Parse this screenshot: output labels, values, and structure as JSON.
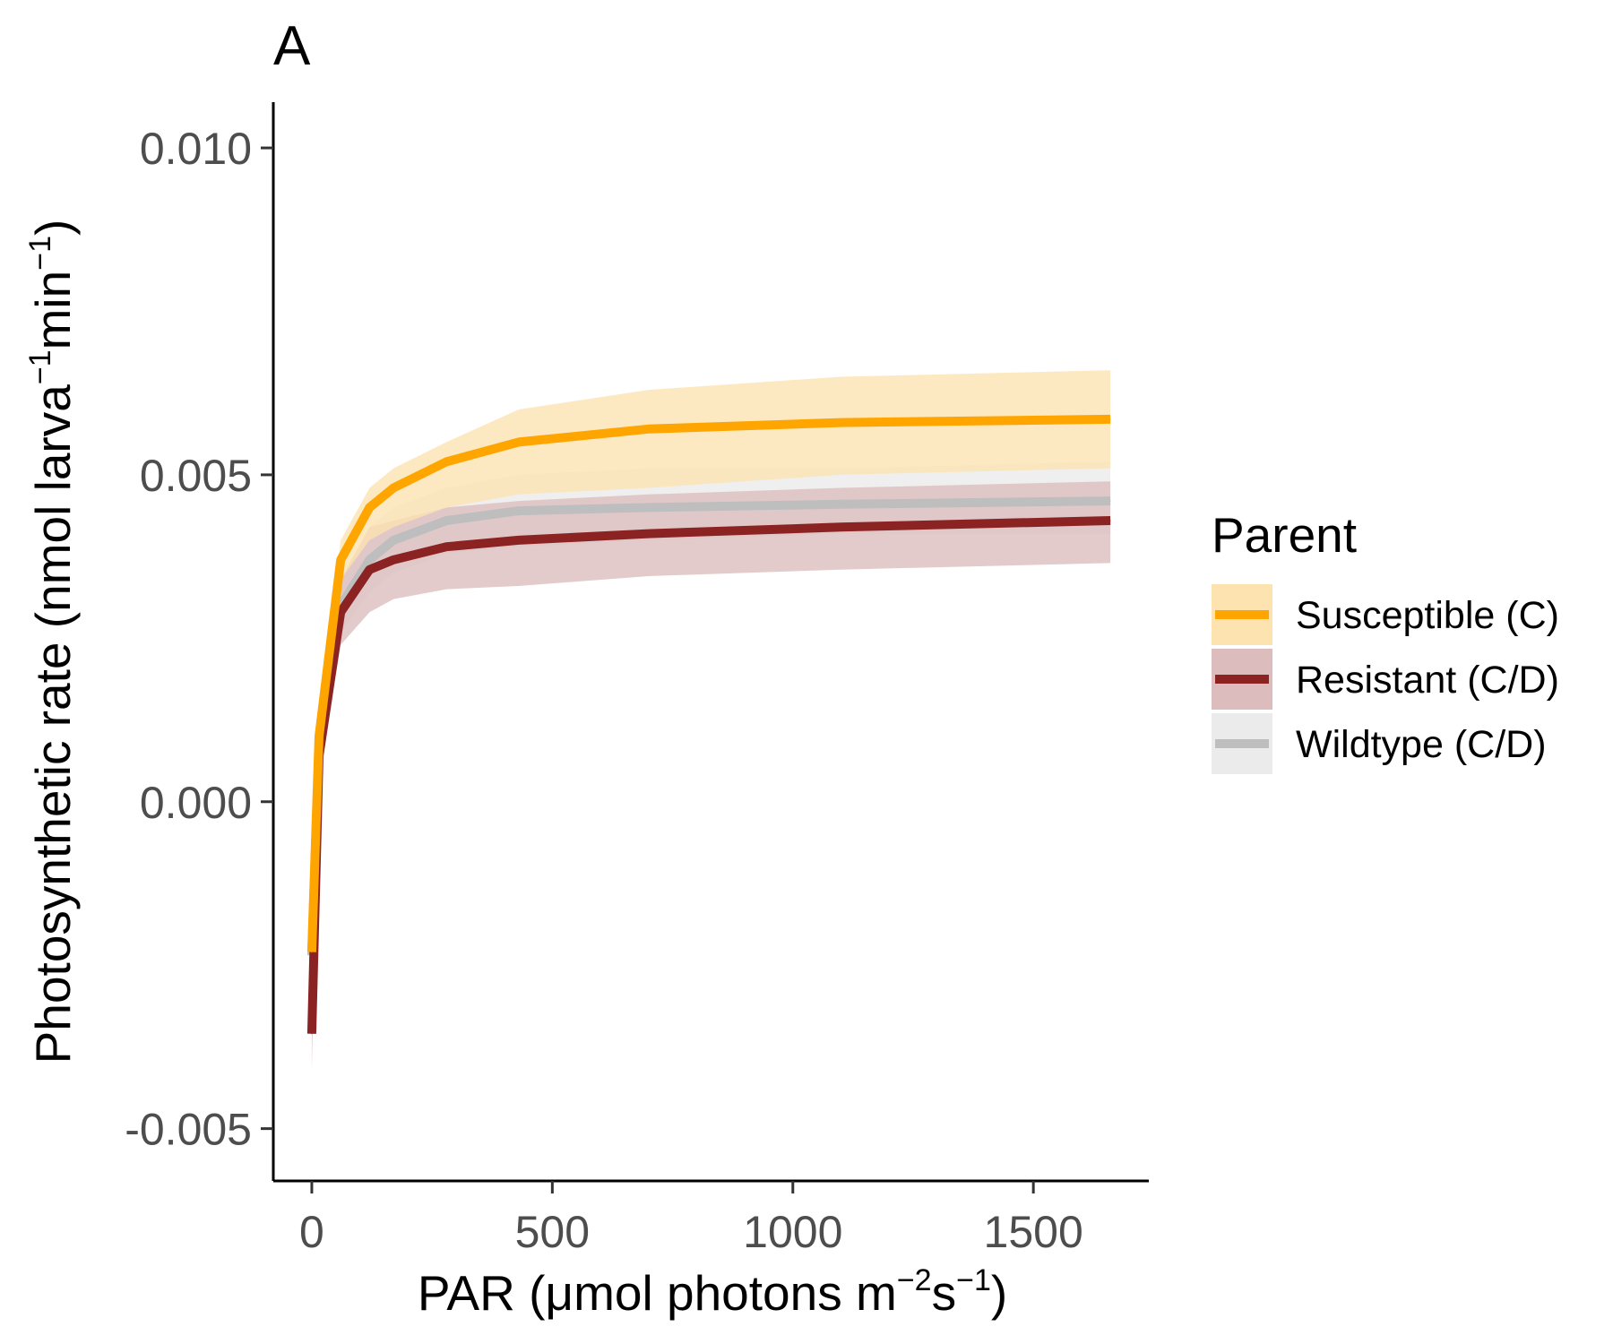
{
  "panel_label": "A",
  "axes": {
    "x_title": {
      "main": "PAR (μmol photons m",
      "exp1": "−2",
      "mid": "s",
      "exp2": "−1",
      "end": ")"
    },
    "y_title": {
      "main": "Photosynthetic rate (nmol larva",
      "exp1": "−1",
      "mid": "min",
      "exp2": "−1",
      "end": ")"
    },
    "x_ticks": [
      "0",
      "500",
      "1000",
      "1500"
    ],
    "y_ticks": [
      "-0.005",
      "0.000",
      "0.005",
      "0.010"
    ]
  },
  "legend": {
    "title": "Parent",
    "items": [
      {
        "label": "Susceptible (C)",
        "line_color": "#FFA500",
        "fill_color": "#FDE3B0"
      },
      {
        "label": "Resistant (C/D)",
        "line_color": "#8B2323",
        "fill_color": "#DCBCBC"
      },
      {
        "label": "Wildtype (C/D)",
        "line_color": "#BEBEBE",
        "fill_color": "#EBEBEB"
      }
    ]
  },
  "chart_data": {
    "type": "line",
    "xlabel": "PAR (μmol photons m−2s−1)",
    "ylabel": "Photosynthetic rate (nmol larva−1min−1)",
    "xlim": [
      -80,
      1740
    ],
    "ylim": [
      -0.0058,
      0.0107
    ],
    "x_ticks": [
      0,
      500,
      1000,
      1500
    ],
    "y_ticks": [
      -0.005,
      0.0,
      0.005,
      0.01
    ],
    "grid": false,
    "legend_position": "right",
    "x": [
      0,
      15,
      60,
      120,
      170,
      280,
      430,
      700,
      1100,
      1660
    ],
    "series": [
      {
        "name": "Susceptible (C)",
        "color": "#FFA500",
        "band_color": "#FDE3B0",
        "values": [
          -0.0023,
          0.001,
          0.0037,
          0.0045,
          0.0048,
          0.0052,
          0.0055,
          0.0057,
          0.0058,
          0.00585
        ],
        "lower": [
          -0.0023,
          0.0007,
          0.0034,
          0.004,
          0.0042,
          0.0045,
          0.0047,
          0.0048,
          0.005,
          0.0051
        ],
        "upper": [
          -0.0023,
          0.0013,
          0.004,
          0.0048,
          0.0051,
          0.0055,
          0.006,
          0.0063,
          0.0065,
          0.0066
        ]
      },
      {
        "name": "Resistant (C/D)",
        "color": "#8B2323",
        "band_color": "#DCBCBC",
        "values": [
          -0.00355,
          0.0007,
          0.0029,
          0.00355,
          0.0037,
          0.0039,
          0.004,
          0.0041,
          0.0042,
          0.0043
        ],
        "lower": [
          -0.0041,
          0.0004,
          0.0024,
          0.0029,
          0.0031,
          0.00325,
          0.0033,
          0.00345,
          0.00355,
          0.00365
        ],
        "upper": [
          -0.003,
          0.001,
          0.0034,
          0.0042,
          0.0043,
          0.0045,
          0.0046,
          0.0047,
          0.0048,
          0.0049
        ]
      },
      {
        "name": "Wildtype (C/D)",
        "color": "#BEBEBE",
        "band_color": "#EBEBEB",
        "values": [
          -0.00235,
          0.0008,
          0.003,
          0.0037,
          0.004,
          0.0043,
          0.00445,
          0.0045,
          0.00455,
          0.0046
        ],
        "lower": [
          -0.0027,
          0.0005,
          0.0026,
          0.0032,
          0.0035,
          0.0038,
          0.0039,
          0.004,
          0.0041,
          0.0041
        ],
        "upper": [
          -0.002,
          0.0011,
          0.0034,
          0.0042,
          0.0045,
          0.0048,
          0.005,
          0.0051,
          0.0051,
          0.0052
        ]
      }
    ]
  }
}
